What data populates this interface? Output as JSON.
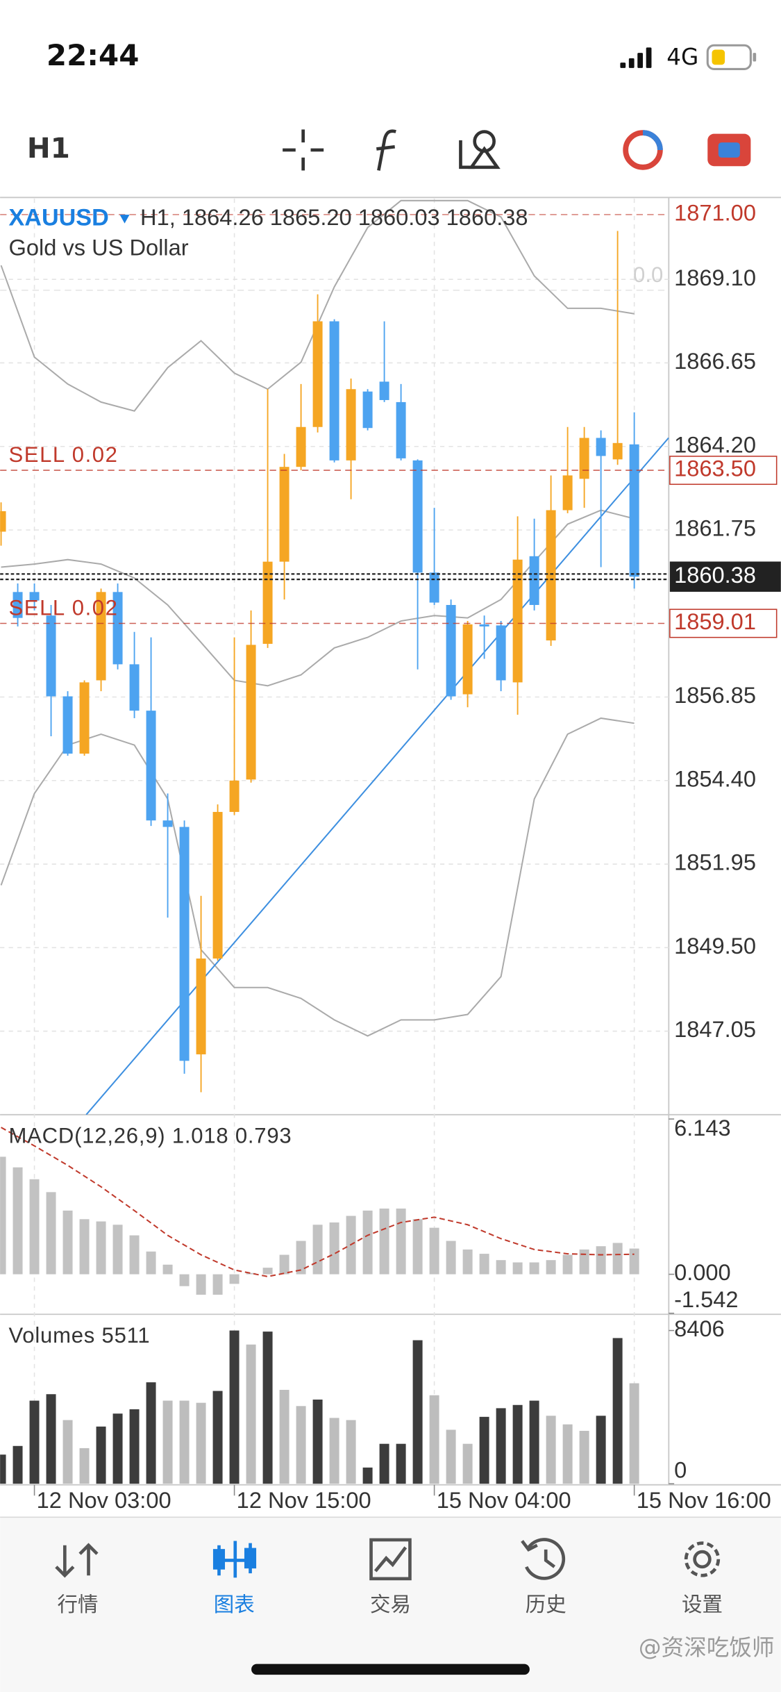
{
  "status_bar": {
    "time": "22:44",
    "network": "4G"
  },
  "toolbar": {
    "timeframe": "H1"
  },
  "symbol_header": {
    "symbol": "XAUUSD",
    "details": "H1, 1864.26 1865.20 1860.03 1860.38",
    "description": "Gold vs US Dollar"
  },
  "chart_data": [
    {
      "type": "candlestick",
      "up_color": "#f5a623",
      "down_color": "#4da3f0",
      "open": [
        1861.7,
        1859.93,
        1859.93,
        1859.24,
        1856.87,
        1855.19,
        1857.34,
        1859.93,
        1857.81,
        1856.45,
        1853.23,
        1853.04,
        1846.37,
        1849.18,
        1853.48,
        1854.43,
        1858.41,
        1860.82,
        1863.6,
        1864.77,
        1867.87,
        1863.79,
        1865.81,
        1866.1,
        1865.5,
        1863.79,
        1860.5,
        1859.55,
        1856.93,
        1858.98,
        1858.95,
        1857.28,
        1860.98,
        1858.51,
        1862.33,
        1863.25,
        1864.45,
        1863.82,
        1864.26
      ],
      "high": [
        1862.56,
        1860.18,
        1860.18,
        1859.55,
        1857.02,
        1857.34,
        1860.03,
        1860.18,
        1858.76,
        1858.6,
        1854.02,
        1853.23,
        1851.02,
        1853.7,
        1858.6,
        1859.39,
        1865.88,
        1863.98,
        1866.03,
        1868.66,
        1867.93,
        1866.19,
        1865.88,
        1867.87,
        1866.03,
        1863.82,
        1862.4,
        1859.71,
        1859.08,
        1859.24,
        1859.08,
        1862.15,
        1862.08,
        1863.35,
        1864.77,
        1864.77,
        1864.67,
        1870.52,
        1865.2
      ],
      "low": [
        1861.29,
        1858.92,
        1859.39,
        1855.7,
        1855.13,
        1855.13,
        1857.02,
        1857.66,
        1856.23,
        1853.07,
        1850.38,
        1845.8,
        1845.26,
        1849.12,
        1853.39,
        1854.34,
        1858.29,
        1859.71,
        1863.5,
        1864.61,
        1863.73,
        1862.65,
        1864.67,
        1865.5,
        1863.79,
        1857.66,
        1859.55,
        1856.77,
        1856.55,
        1857.97,
        1857.02,
        1856.33,
        1859.39,
        1858.35,
        1862.24,
        1862.4,
        1860.66,
        1863.66,
        1860.03
      ],
      "close": [
        1862.3,
        1859.17,
        1859.68,
        1856.87,
        1855.19,
        1857.28,
        1859.93,
        1857.81,
        1856.45,
        1853.23,
        1853.04,
        1846.18,
        1849.18,
        1853.48,
        1854.4,
        1858.38,
        1860.82,
        1863.6,
        1864.77,
        1867.87,
        1863.79,
        1865.88,
        1864.74,
        1865.56,
        1863.85,
        1860.5,
        1859.62,
        1856.87,
        1858.98,
        1858.92,
        1857.34,
        1860.88,
        1859.55,
        1862.33,
        1863.35,
        1864.45,
        1863.92,
        1864.3,
        1860.38
      ],
      "xlim": [
        -0.06,
        40.07
      ],
      "xticks": [
        {
          "value": 2,
          "label": "12 Nov 03:00"
        },
        {
          "value": 14,
          "label": "12 Nov 15:00"
        },
        {
          "value": 26,
          "label": "15 Nov 04:00"
        },
        {
          "value": 38,
          "label": "15 Nov 16:00"
        }
      ],
      "ylim": [
        1844.6,
        1871.47
      ],
      "yticks": [
        {
          "value": 1869.1,
          "label": "1869.10"
        },
        1866.65,
        {
          "value": 1864.2,
          "label": "1864.20"
        },
        1861.75,
        1856.85,
        {
          "value": 1854.4,
          "label": "1854.40"
        },
        1851.95,
        {
          "value": 1849.5,
          "label": "1849.50"
        },
        1847.05
      ],
      "grid": true,
      "overlays": [
        {
          "type": "line",
          "color": "#aaaaaa",
          "x": [
            0,
            2,
            4,
            6,
            8,
            10,
            12,
            14,
            16,
            18,
            20,
            22,
            24,
            26,
            28,
            30,
            32,
            34,
            36,
            38
          ],
          "values": [
            1869.51,
            1866.82,
            1866.03,
            1865.5,
            1865.24,
            1866.51,
            1867.3,
            1866.35,
            1865.88,
            1866.67,
            1868.88,
            1870.62,
            1871.41,
            1871.41,
            1871.41,
            1870.93,
            1869.2,
            1868.25,
            1868.25,
            1868.09
          ]
        },
        {
          "type": "line",
          "color": "#aaaaaa",
          "x": [
            0,
            2,
            4,
            6,
            8,
            10,
            12,
            14,
            16,
            18,
            20,
            22,
            24,
            26,
            28,
            30,
            32,
            34,
            36,
            38
          ],
          "values": [
            1860.66,
            1860.75,
            1860.88,
            1860.75,
            1860.34,
            1859.55,
            1858.45,
            1857.34,
            1857.18,
            1857.5,
            1858.29,
            1858.6,
            1859.08,
            1859.24,
            1859.17,
            1859.71,
            1860.82,
            1861.92,
            1862.33,
            1862.08
          ]
        },
        {
          "type": "line",
          "color": "#aaaaaa",
          "x": [
            0,
            2,
            4,
            6,
            8,
            10,
            12,
            14,
            16,
            18,
            20,
            22,
            24,
            26,
            28,
            30,
            32,
            34,
            36,
            38
          ],
          "values": [
            1851.33,
            1854.02,
            1855.44,
            1855.76,
            1855.44,
            1853.86,
            1849.44,
            1848.33,
            1848.33,
            1848.01,
            1847.38,
            1846.91,
            1847.38,
            1847.38,
            1847.54,
            1848.65,
            1853.86,
            1855.76,
            1856.23,
            1856.08
          ]
        },
        {
          "type": "line",
          "color": "#3d8fe0",
          "x": [
            5.11,
            40.06
          ],
          "values": [
            1844.6,
            1864.45
          ]
        }
      ],
      "hlines": [
        {
          "value": 1871,
          "value_label": "1871.00",
          "color": "#c0392b"
        },
        {
          "label": "0.0",
          "value": 1868.78,
          "color": "#d0d0d0"
        },
        {
          "label": "SELL 0.02",
          "value": 1863.5,
          "value_label": "1863.50",
          "color": "#c0392b",
          "box": "outline"
        },
        {
          "value": 1860.38,
          "color": "#222222",
          "box": "filled"
        },
        {
          "label": "SELL 0.02",
          "value": 1859.01,
          "color": "#c0392b",
          "box": "outline"
        }
      ]
    },
    {
      "type": "bar",
      "title": "MACD(12,26,9) 1.018 0.793",
      "series": [
        {
          "type": "bar",
          "color": "#c2c2c2",
          "values": [
            4.65,
            4.23,
            3.76,
            3.25,
            2.52,
            2.18,
            2.09,
            1.96,
            1.54,
            0.9,
            0.38,
            -0.47,
            -0.81,
            -0.81,
            -0.38,
            0.05,
            0.26,
            0.77,
            1.32,
            1.96,
            2.05,
            2.31,
            2.52,
            2.6,
            2.6,
            2.18,
            1.84,
            1.32,
            0.98,
            0.81,
            0.56,
            0.47,
            0.47,
            0.56,
            0.77,
            0.98,
            1.11,
            1.24,
            1.018
          ]
        },
        {
          "type": "line",
          "color": "#c0392b",
          "dashed": true,
          "x": [
            0,
            2,
            4,
            6,
            8,
            10,
            12,
            14,
            16,
            18,
            20,
            22,
            24,
            26,
            28,
            30,
            32,
            34,
            36,
            38
          ],
          "values": [
            5.81,
            5.08,
            4.31,
            3.46,
            2.52,
            1.54,
            0.77,
            0.17,
            -0.09,
            0.17,
            0.81,
            1.54,
            2.05,
            2.26,
            1.96,
            1.41,
            0.98,
            0.81,
            0.77,
            0.793
          ]
        }
      ],
      "ylim": [
        -1.542,
        6.143
      ],
      "yticks": [
        6.143,
        {
          "value": 0,
          "label": "0.000"
        },
        -1.542
      ]
    },
    {
      "type": "bar",
      "title": "Volumes 5511",
      "values": [
        1598,
        2072,
        4558,
        4913,
        3493,
        1953,
        3137,
        3848,
        4085,
        5564,
        4558,
        4558,
        4440,
        5091,
        8406,
        7637,
        8347,
        5150,
        4262,
        4617,
        3611,
        3493,
        888,
        2190,
        2190,
        7873,
        4854,
        2960,
        2190,
        3670,
        4144,
        4321,
        4558,
        3729,
        3256,
        2901,
        3729,
        7992,
        5511
      ],
      "colors": [
        "#3c3c3c",
        "#3c3c3c",
        "#3c3c3c",
        "#3c3c3c",
        "#bdbdbd",
        "#bdbdbd",
        "#3c3c3c",
        "#3c3c3c",
        "#3c3c3c",
        "#3c3c3c",
        "#bdbdbd",
        "#bdbdbd",
        "#bdbdbd",
        "#3c3c3c",
        "#3c3c3c",
        "#bdbdbd",
        "#3c3c3c",
        "#bdbdbd",
        "#bdbdbd",
        "#3c3c3c",
        "#bdbdbd",
        "#bdbdbd",
        "#3c3c3c",
        "#3c3c3c",
        "#3c3c3c",
        "#3c3c3c",
        "#bdbdbd",
        "#bdbdbd",
        "#bdbdbd",
        "#3c3c3c",
        "#3c3c3c",
        "#3c3c3c",
        "#3c3c3c",
        "#bdbdbd",
        "#bdbdbd",
        "#bdbdbd",
        "#3c3c3c",
        "#3c3c3c",
        "#bdbdbd"
      ],
      "ylim": [
        0,
        8406
      ],
      "yticks": [
        0,
        8406
      ]
    }
  ],
  "tab_bar": {
    "tabs": [
      "行情",
      "图表",
      "交易",
      "历史",
      "设置"
    ],
    "active": 1,
    "active_color": "#1a7fe0",
    "color": "#555555"
  },
  "watermark": "@资深吃饭师"
}
